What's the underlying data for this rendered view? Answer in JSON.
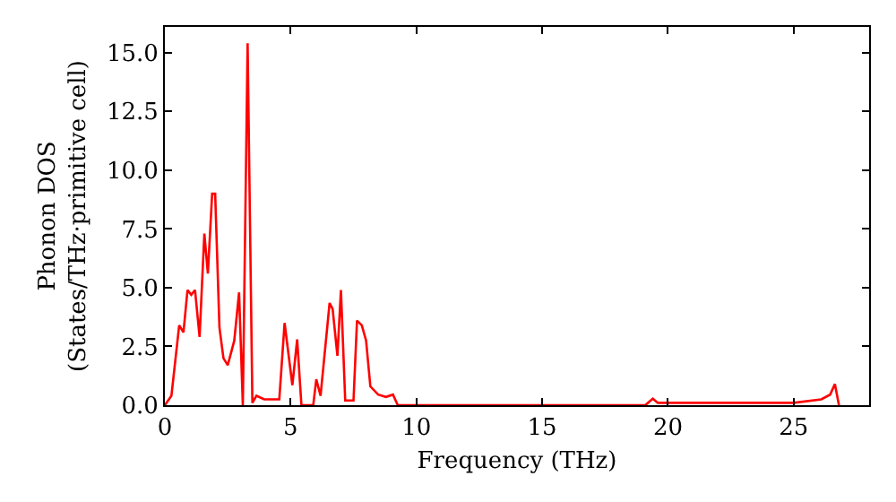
{
  "chart_data": {
    "type": "line",
    "xlabel": "Frequency (THz)",
    "ylabel": "Phonon DOS\n(States/THz·primitive cell)",
    "x": [
      0,
      0.26,
      0.57,
      0.74,
      0.9,
      1.05,
      1.2,
      1.38,
      1.57,
      1.71,
      1.88,
      2.0,
      2.17,
      2.33,
      2.5,
      2.76,
      2.95,
      3.1,
      3.29,
      3.48,
      3.64,
      3.95,
      4.55,
      4.76,
      5.07,
      5.26,
      5.43,
      5.9,
      6.02,
      6.19,
      6.55,
      6.67,
      6.86,
      7.0,
      7.17,
      7.5,
      7.64,
      7.83,
      8.0,
      8.17,
      8.48,
      8.79,
      9.07,
      9.26,
      19.1,
      19.4,
      19.6,
      25.0,
      26.1,
      26.45,
      26.64,
      26.8
    ],
    "series": [
      {
        "color": "#ff0000",
        "values": [
          0,
          0.4,
          3.4,
          3.1,
          4.9,
          4.7,
          4.9,
          2.9,
          7.3,
          5.6,
          9.0,
          9.0,
          3.3,
          2.0,
          1.7,
          2.75,
          4.8,
          0,
          15.4,
          0.1,
          0.4,
          0.25,
          0.25,
          3.5,
          0.85,
          2.8,
          0,
          0,
          1.1,
          0.4,
          4.35,
          4.1,
          2.1,
          4.9,
          0.2,
          0.2,
          3.6,
          3.4,
          2.75,
          0.8,
          0.45,
          0.35,
          0.45,
          0,
          0,
          0.28,
          0.1,
          0.1,
          0.25,
          0.45,
          0.9,
          0
        ]
      }
    ],
    "xlim": [
      0,
      28
    ],
    "xticks": [
      0,
      5,
      10,
      15,
      20,
      25
    ],
    "ylim": [
      0,
      16.1
    ],
    "yticks": [
      {
        "value": 0,
        "label": "0.0"
      },
      {
        "value": 2.5,
        "label": "2.5"
      },
      {
        "value": 5,
        "label": "5.0"
      },
      {
        "value": 7.5,
        "label": "7.5"
      },
      {
        "value": 10,
        "label": "10.0"
      },
      {
        "value": 12.5,
        "label": "12.5"
      },
      {
        "value": 15,
        "label": "15.0"
      }
    ],
    "grid": false,
    "line_style": "solid",
    "marker": "none"
  }
}
